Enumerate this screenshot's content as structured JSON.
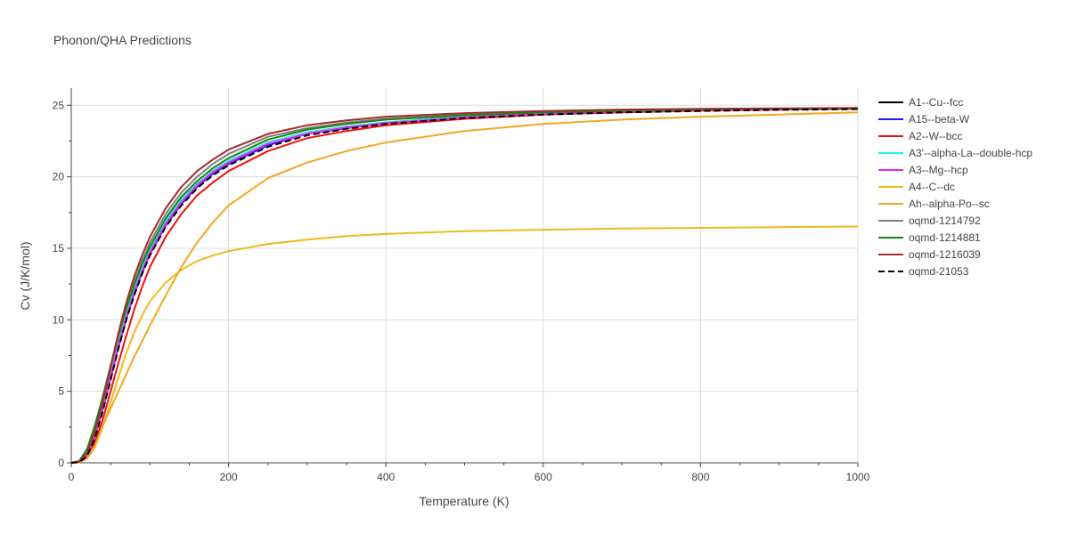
{
  "chart_data": {
    "type": "line",
    "title": "Phonon/QHA Predictions",
    "xlabel": "Temperature (K)",
    "ylabel": "Cv (J/K/mol)",
    "xlim": [
      0,
      1000
    ],
    "ylim": [
      0,
      26.2
    ],
    "xticks": [
      0,
      200,
      400,
      600,
      800,
      1000
    ],
    "yticks": [
      0,
      5,
      10,
      15,
      20,
      25
    ],
    "grid": true,
    "legend_position": "right",
    "x": [
      0,
      10,
      20,
      30,
      40,
      50,
      60,
      70,
      80,
      90,
      100,
      120,
      140,
      160,
      180,
      200,
      250,
      300,
      350,
      400,
      500,
      600,
      700,
      800,
      900,
      1000
    ],
    "series": [
      {
        "name": "A1--Cu--fcc",
        "color": "#000000",
        "dash": false,
        "values": [
          0,
          0.06,
          0.55,
          1.9,
          3.9,
          6.2,
          8.4,
          10.4,
          12.1,
          13.6,
          14.9,
          16.9,
          18.4,
          19.5,
          20.4,
          21.1,
          22.4,
          23.1,
          23.5,
          23.8,
          24.2,
          24.45,
          24.6,
          24.7,
          24.75,
          24.8
        ]
      },
      {
        "name": "A15--beta-W",
        "color": "#1a1aff",
        "dash": false,
        "values": [
          0,
          0.05,
          0.5,
          1.8,
          3.7,
          5.9,
          8.1,
          10.1,
          11.8,
          13.3,
          14.6,
          16.6,
          18.1,
          19.3,
          20.2,
          20.9,
          22.2,
          23.0,
          23.4,
          23.75,
          24.15,
          24.4,
          24.55,
          24.65,
          24.72,
          24.78
        ]
      },
      {
        "name": "A2--W--bcc",
        "color": "#ee1111",
        "dash": false,
        "values": [
          0,
          0.04,
          0.4,
          1.4,
          3.0,
          5.0,
          7.0,
          8.9,
          10.7,
          12.3,
          13.7,
          15.8,
          17.4,
          18.7,
          19.6,
          20.4,
          21.8,
          22.7,
          23.2,
          23.6,
          24.05,
          24.35,
          24.5,
          24.62,
          24.7,
          24.75
        ]
      },
      {
        "name": "A3'--alpha-La--double-hcp",
        "color": "#22eeee",
        "dash": false,
        "values": [
          0,
          0.06,
          0.55,
          1.9,
          3.9,
          6.2,
          8.4,
          10.4,
          12.1,
          13.6,
          14.9,
          16.9,
          18.4,
          19.5,
          20.4,
          21.1,
          22.4,
          23.1,
          23.5,
          23.8,
          24.2,
          24.45,
          24.6,
          24.7,
          24.75,
          24.8
        ]
      },
      {
        "name": "A3--Mg--hcp",
        "color": "#ee22ee",
        "dash": false,
        "values": [
          0,
          0.05,
          0.5,
          1.8,
          3.7,
          6.0,
          8.2,
          10.2,
          11.9,
          13.4,
          14.7,
          16.7,
          18.2,
          19.4,
          20.3,
          21.0,
          22.3,
          23.0,
          23.45,
          23.75,
          24.15,
          24.4,
          24.55,
          24.65,
          24.72,
          24.78
        ]
      },
      {
        "name": "A4--C--dc",
        "color": "#f2b81f",
        "dash": false,
        "values": [
          0,
          0.03,
          0.3,
          1.1,
          2.5,
          4.2,
          6.0,
          7.7,
          9.1,
          10.3,
          11.3,
          12.6,
          13.5,
          14.1,
          14.5,
          14.8,
          15.3,
          15.6,
          15.85,
          16.0,
          16.2,
          16.3,
          16.38,
          16.43,
          16.48,
          16.52
        ]
      },
      {
        "name": "Ah--alpha-Po--sc",
        "color": "#f5a623",
        "dash": false,
        "values": [
          0,
          0.03,
          0.3,
          1.2,
          2.6,
          3.8,
          5.0,
          6.2,
          7.4,
          8.5,
          9.6,
          11.7,
          13.7,
          15.4,
          16.8,
          18.0,
          19.9,
          21.0,
          21.8,
          22.4,
          23.2,
          23.7,
          24.0,
          24.2,
          24.35,
          24.5
        ]
      },
      {
        "name": "oqmd-1214792",
        "color": "#7f7f7f",
        "dash": false,
        "values": [
          0,
          0.07,
          0.65,
          2.1,
          4.2,
          6.6,
          8.9,
          10.9,
          12.6,
          14.1,
          15.4,
          17.4,
          18.9,
          20.0,
          20.9,
          21.6,
          22.8,
          23.4,
          23.8,
          24.05,
          24.35,
          24.55,
          24.65,
          24.72,
          24.76,
          24.8
        ]
      },
      {
        "name": "oqmd-1214881",
        "color": "#138a13",
        "dash": false,
        "values": [
          0,
          0.12,
          0.95,
          2.6,
          4.6,
          6.8,
          8.9,
          10.8,
          12.4,
          13.9,
          15.1,
          17.1,
          18.6,
          19.7,
          20.6,
          21.3,
          22.6,
          23.3,
          23.7,
          24.0,
          24.3,
          24.5,
          24.62,
          24.7,
          24.75,
          24.78
        ]
      },
      {
        "name": "oqmd-1216039",
        "color": "#a52a2a",
        "dash": false,
        "values": [
          0,
          0.08,
          0.7,
          2.2,
          4.3,
          6.7,
          9.1,
          11.2,
          13.0,
          14.5,
          15.8,
          17.8,
          19.3,
          20.4,
          21.2,
          21.9,
          23.0,
          23.6,
          23.95,
          24.2,
          24.45,
          24.6,
          24.7,
          24.75,
          24.78,
          24.82
        ]
      },
      {
        "name": "oqmd-21053",
        "color": "#000000",
        "dash": true,
        "values": [
          0,
          0.05,
          0.45,
          1.7,
          3.6,
          5.8,
          8.0,
          10.0,
          11.7,
          13.2,
          14.5,
          16.5,
          18.0,
          19.2,
          20.1,
          20.8,
          22.1,
          22.9,
          23.35,
          23.7,
          24.1,
          24.35,
          24.5,
          24.6,
          24.68,
          24.73
        ]
      }
    ]
  }
}
